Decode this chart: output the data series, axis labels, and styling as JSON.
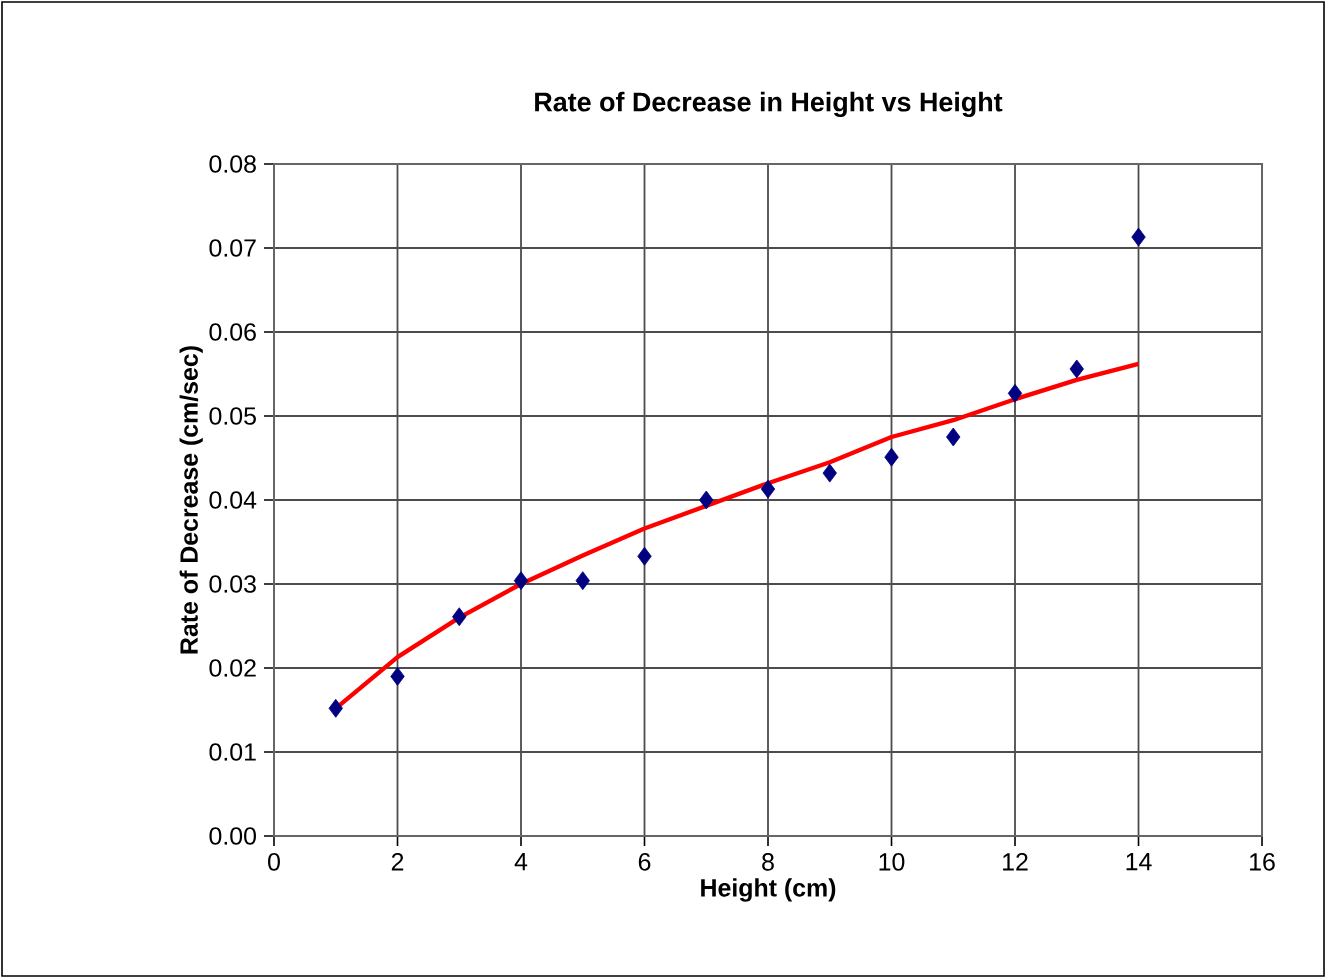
{
  "chart_data": {
    "type": "scatter",
    "title": "Rate of Decrease in Height vs Height",
    "xlabel": "Height (cm)",
    "ylabel": "Rate of Decrease (cm/sec)",
    "xlim": [
      0,
      16
    ],
    "xticks": [
      0,
      2,
      4,
      6,
      8,
      10,
      12,
      14,
      16
    ],
    "ylim": [
      0,
      0.08
    ],
    "yticks": [
      {
        "value": 0,
        "label": "0.00"
      },
      {
        "value": 0.01,
        "label": "0.01"
      },
      {
        "value": 0.02,
        "label": "0.02"
      },
      {
        "value": 0.03,
        "label": "0.03"
      },
      {
        "value": 0.04,
        "label": "0.04"
      },
      {
        "value": 0.05,
        "label": "0.05"
      },
      {
        "value": 0.06,
        "label": "0.06"
      },
      {
        "value": 0.07,
        "label": "0.07"
      },
      {
        "value": 0.08,
        "label": "0.08"
      }
    ],
    "grid": true,
    "series": [
      {
        "color": "#000080",
        "marker": "diamond",
        "x": [
          1,
          2,
          3,
          4,
          5,
          6,
          7,
          8,
          9,
          10,
          11,
          12,
          13,
          14
        ],
        "values": [
          0.0152,
          0.019,
          0.0261,
          0.0304,
          0.0304,
          0.0333,
          0.04,
          0.0413,
          0.0432,
          0.0451,
          0.0475,
          0.0527,
          0.0556,
          0.0713
        ]
      },
      {
        "type": "line",
        "color": "#ff0000",
        "marker": "none",
        "line_style": "solid",
        "x": [
          1,
          2,
          3,
          4,
          5,
          6,
          7,
          8,
          9,
          10,
          11,
          12,
          13,
          14
        ],
        "values": [
          0.0152,
          0.0213,
          0.026,
          0.03,
          0.0334,
          0.0366,
          0.0393,
          0.042,
          0.0445,
          0.0475,
          0.0495,
          0.052,
          0.0543,
          0.0562
        ]
      }
    ]
  }
}
